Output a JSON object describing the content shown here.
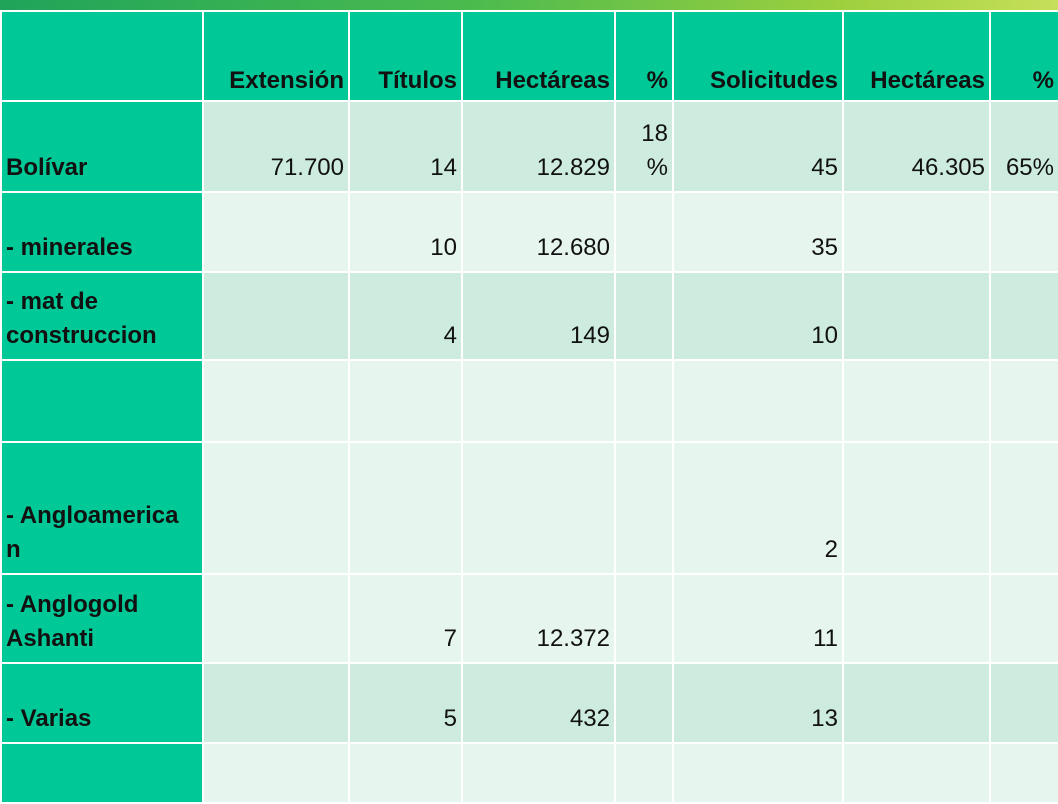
{
  "table": {
    "headers": [
      "",
      "Extensión",
      "Títulos",
      "Hectáreas",
      "%",
      "Solicitudes",
      "Hectáreas",
      "%"
    ],
    "rows": [
      {
        "label": "Bolívar",
        "extension": "71.700",
        "titulos": "14",
        "hectareas1": "12.829",
        "pct1": "18 %",
        "solicitudes": "45",
        "hectareas2": "46.305",
        "pct2": "65%"
      },
      {
        "label": "- minerales",
        "extension": "",
        "titulos": "10",
        "hectareas1": "12.680",
        "pct1": "",
        "solicitudes": "35",
        "hectareas2": "",
        "pct2": ""
      },
      {
        "label": "- mat de construccion",
        "extension": "",
        "titulos": "4",
        "hectareas1": "149",
        "pct1": "",
        "solicitudes": "10",
        "hectareas2": "",
        "pct2": ""
      },
      {
        "label": "",
        "extension": "",
        "titulos": "",
        "hectareas1": "",
        "pct1": "",
        "solicitudes": "",
        "hectareas2": "",
        "pct2": ""
      },
      {
        "label": "- Angloamerica n",
        "extension": "",
        "titulos": "",
        "hectareas1": "",
        "pct1": "",
        "solicitudes": "2",
        "hectareas2": "",
        "pct2": ""
      },
      {
        "label": "- Anglogold Ashanti",
        "extension": "",
        "titulos": "7",
        "hectareas1": "12.372",
        "pct1": "",
        "solicitudes": "11",
        "hectareas2": "",
        "pct2": ""
      },
      {
        "label": "- Varias",
        "extension": "",
        "titulos": "5",
        "hectareas1": "432",
        "pct1": "",
        "solicitudes": "13",
        "hectareas2": "",
        "pct2": ""
      },
      {
        "label": "",
        "extension": "",
        "titulos": "",
        "hectareas1": "",
        "pct1": "",
        "solicitudes": "",
        "hectareas2": "",
        "pct2": ""
      }
    ]
  },
  "colors": {
    "header": "#00c896",
    "row_dark": "#cdebde",
    "row_light": "#e6f5ee"
  }
}
